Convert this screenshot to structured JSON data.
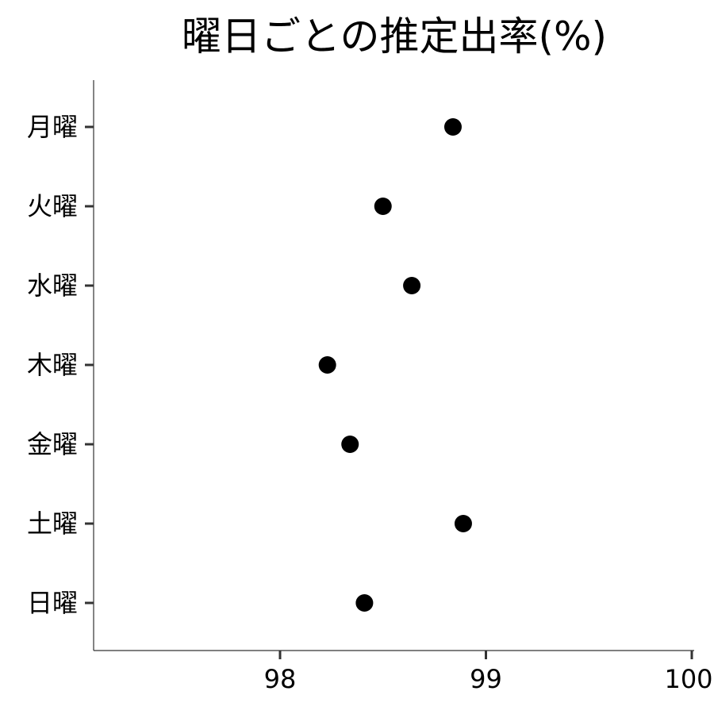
{
  "chart_data": {
    "type": "scatter",
    "title": "曜日ごとの推定出率(%)",
    "xlabel": "",
    "ylabel": "",
    "xlim": [
      97.1,
      100.0
    ],
    "xticks": [
      98,
      99,
      100
    ],
    "categories": [
      "月曜",
      "火曜",
      "水曜",
      "木曜",
      "金曜",
      "土曜",
      "日曜"
    ],
    "values": [
      98.84,
      98.5,
      98.64,
      98.23,
      98.34,
      98.89,
      98.41
    ],
    "grid": false,
    "legend": "none",
    "point_color": "#000000"
  }
}
